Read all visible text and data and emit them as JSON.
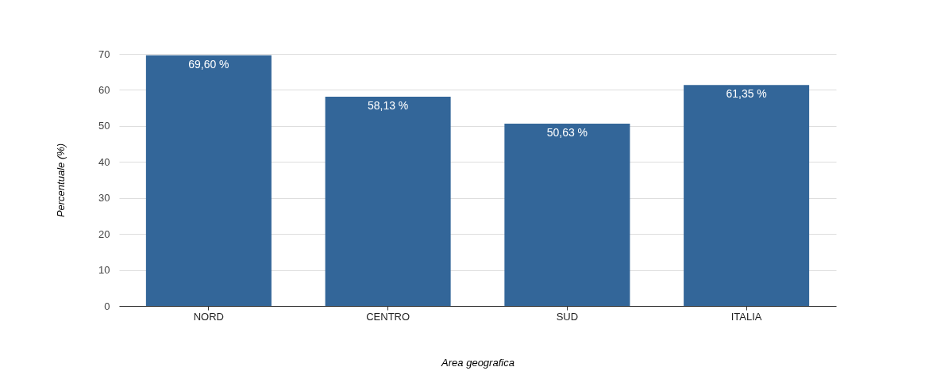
{
  "chart_data": {
    "type": "bar",
    "xlabel": "Area geografica",
    "ylabel": "Percentuale (%)",
    "categories": [
      "NORD",
      "CENTRO",
      "SUD",
      "ITALIA"
    ],
    "values": [
      69.6,
      58.13,
      50.63,
      61.35
    ],
    "value_labels": [
      "69,60 %",
      "58,13 %",
      "50,63 %",
      "61,35 %"
    ],
    "color": "#336699",
    "ylim": [
      0,
      70
    ],
    "yticks": [
      0,
      10,
      20,
      30,
      40,
      50,
      60,
      70
    ],
    "grid": "y"
  }
}
